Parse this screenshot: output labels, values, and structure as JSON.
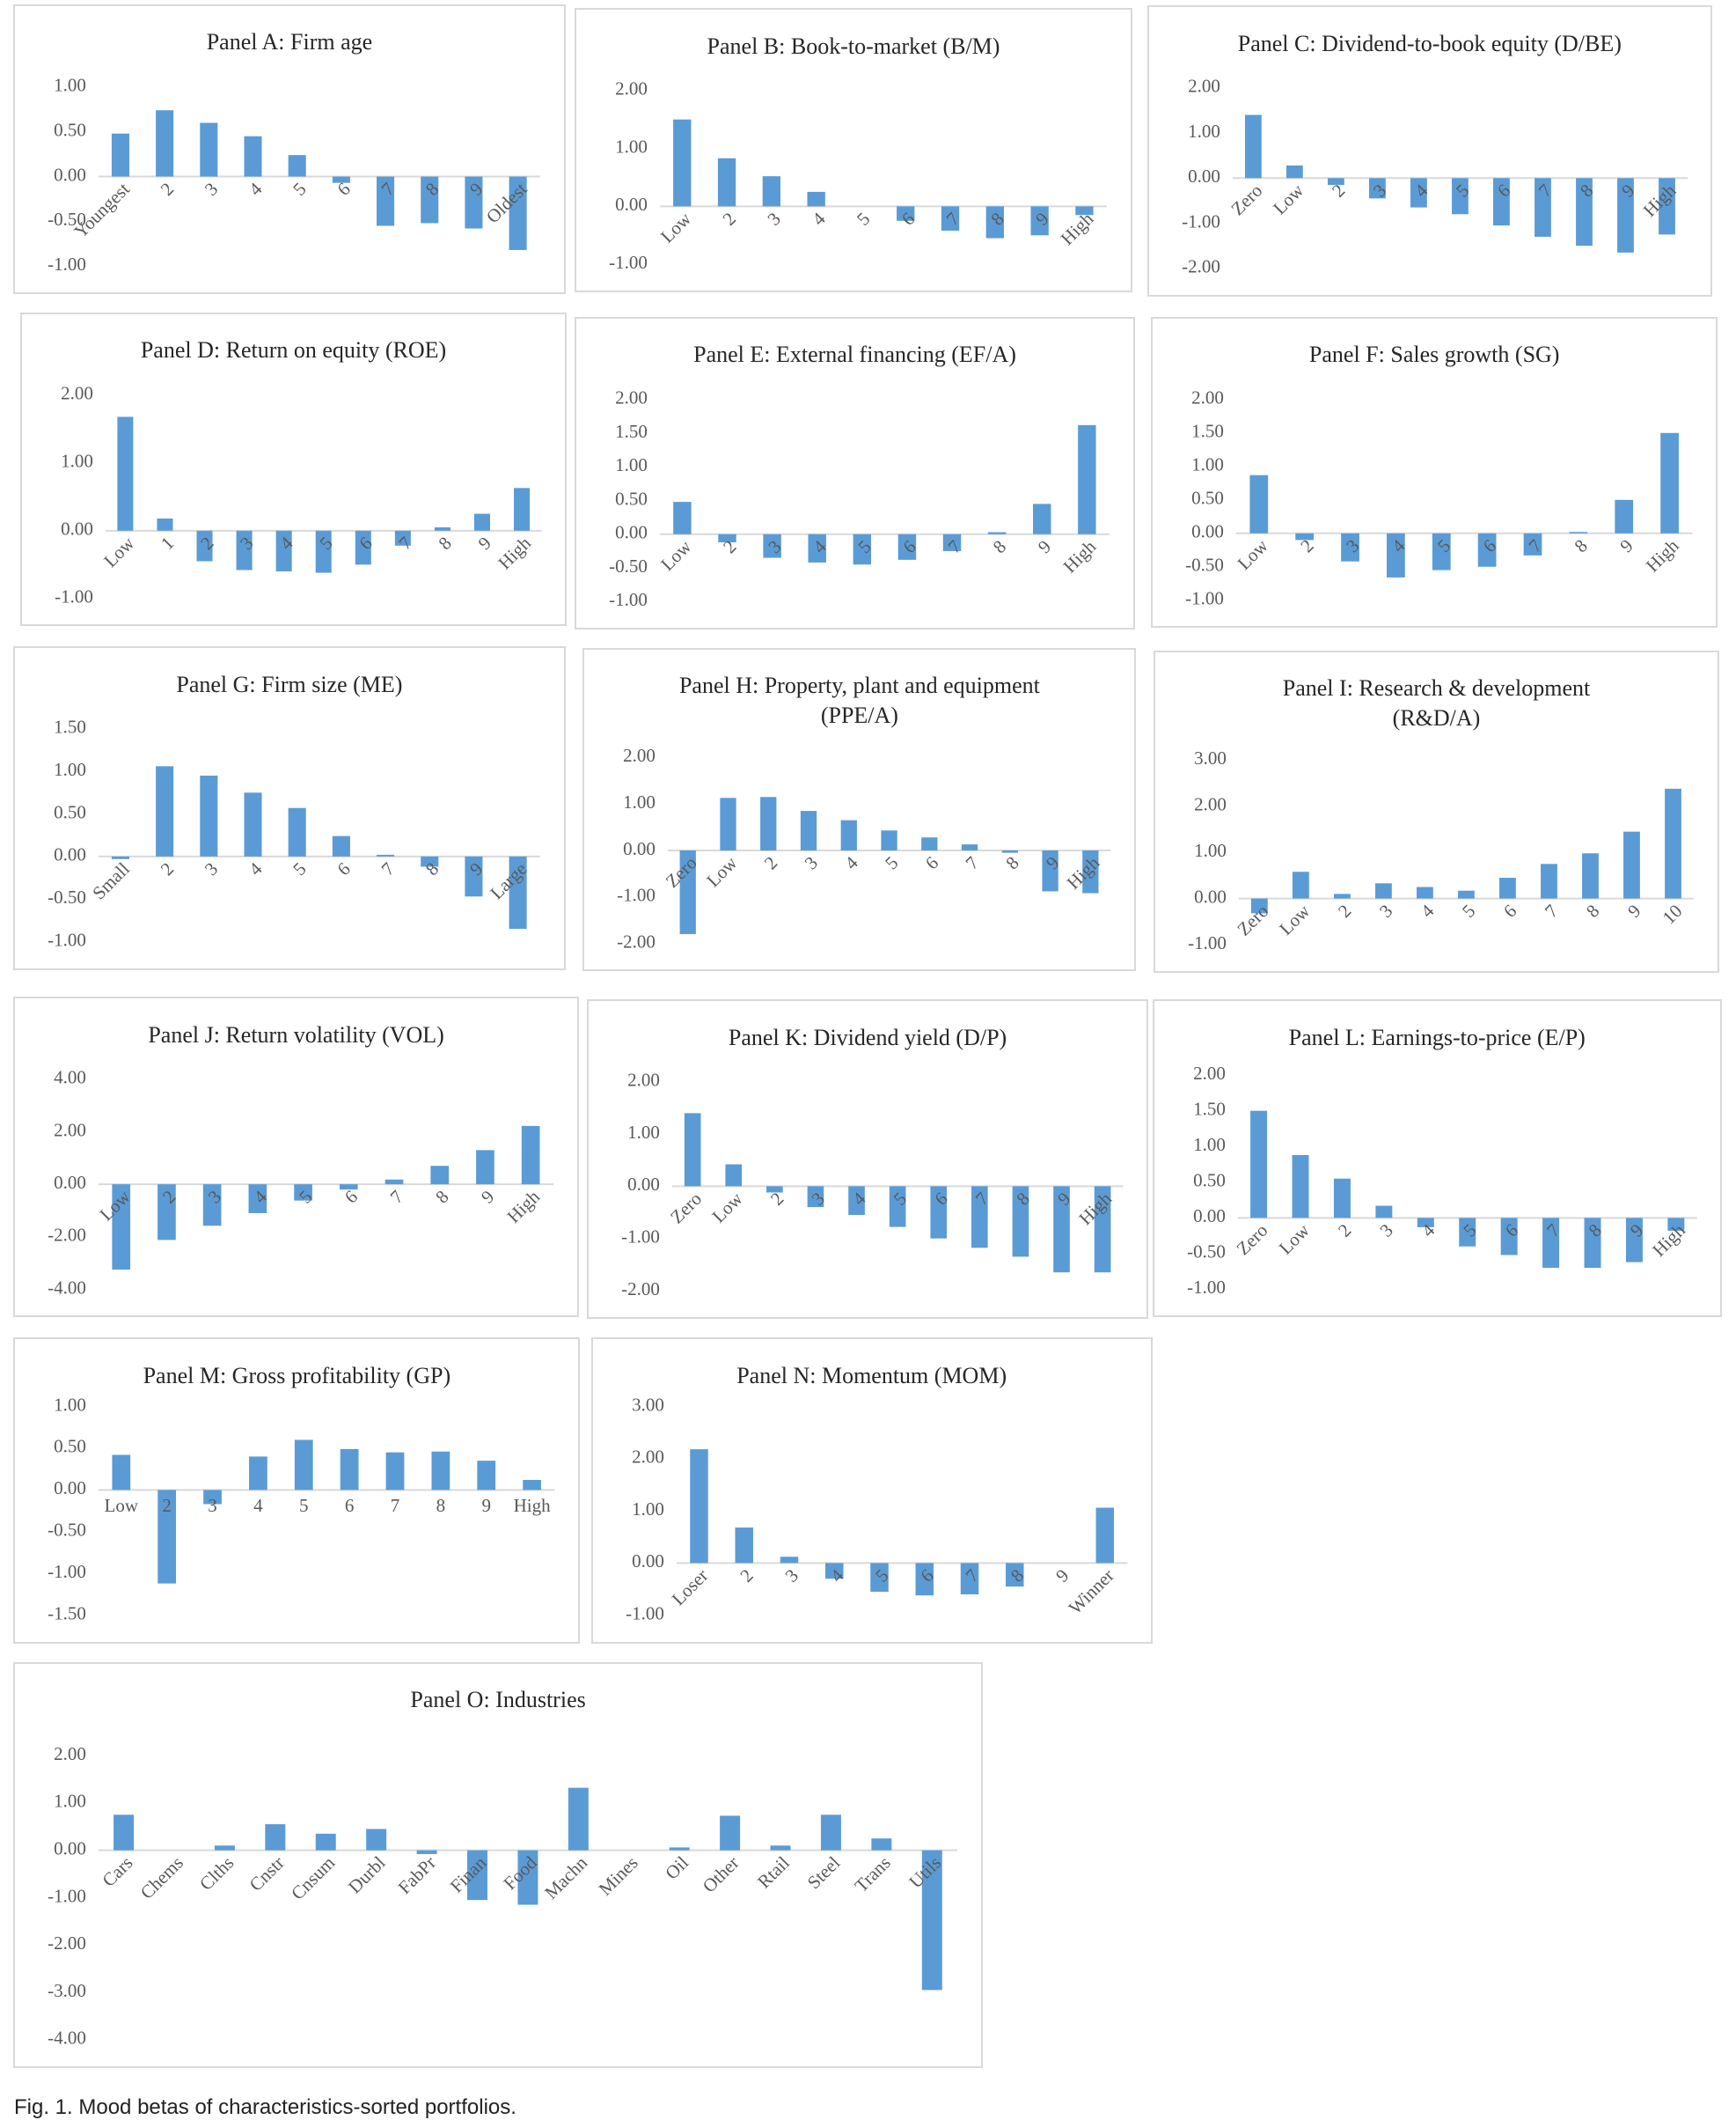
{
  "caption": "Fig. 1. Mood betas of characteristics-sorted portfolios.",
  "chart_data": [
    {
      "type": "bar",
      "title": "Panel A: Firm age",
      "color": "#5b9bd5",
      "categories": [
        "Youngest",
        "2",
        "3",
        "4",
        "5",
        "6",
        "7",
        "8",
        "9",
        "Oldest"
      ],
      "values": [
        0.48,
        0.74,
        0.6,
        0.45,
        0.24,
        -0.07,
        -0.55,
        -0.52,
        -0.58,
        -0.82
      ],
      "ylim": [
        -1,
        1
      ],
      "yticks": [
        {
          "value": -1,
          "label": "-1.00"
        },
        {
          "value": -0.5,
          "label": "-0.50"
        },
        {
          "value": 0,
          "label": "0.00"
        },
        {
          "value": 0.5,
          "label": "0.50"
        },
        {
          "value": 1,
          "label": "1.00"
        }
      ]
    },
    {
      "type": "bar",
      "title": "Panel B: Book-to-market (B/M)",
      "color": "#5b9bd5",
      "categories": [
        "Low",
        "2",
        "3",
        "4",
        "5",
        "6",
        "7",
        "8",
        "9",
        "High"
      ],
      "values": [
        1.5,
        0.83,
        0.52,
        0.25,
        0,
        -0.25,
        -0.42,
        -0.55,
        -0.5,
        -0.15
      ],
      "ylim": [
        -1,
        2
      ],
      "yticks": [
        {
          "value": -1,
          "label": "-1.00"
        },
        {
          "value": 0,
          "label": "0.00"
        },
        {
          "value": 1,
          "label": "1.00"
        },
        {
          "value": 2,
          "label": "2.00"
        }
      ]
    },
    {
      "type": "bar",
      "title": "Panel C: Dividend-to-book equity (D/BE)",
      "color": "#5b9bd5",
      "categories": [
        "Zero",
        "Low",
        "2",
        "3",
        "4",
        "5",
        "6",
        "7",
        "8",
        "9",
        "High"
      ],
      "values": [
        1.4,
        0.28,
        -0.15,
        -0.45,
        -0.65,
        -0.8,
        -1.05,
        -1.3,
        -1.5,
        -1.65,
        -1.25
      ],
      "ylim": [
        -2,
        2
      ],
      "yticks": [
        {
          "value": -2,
          "label": "-2.00"
        },
        {
          "value": -1,
          "label": "-1.00"
        },
        {
          "value": 0,
          "label": "0.00"
        },
        {
          "value": 1,
          "label": "1.00"
        },
        {
          "value": 2,
          "label": "2.00"
        }
      ]
    },
    {
      "type": "bar",
      "title": "Panel D: Return on equity (ROE)",
      "color": "#5b9bd5",
      "categories": [
        "Low",
        "1",
        "2",
        "3",
        "4",
        "5",
        "6",
        "7",
        "8",
        "9",
        "High"
      ],
      "values": [
        1.68,
        0.18,
        -0.45,
        -0.58,
        -0.6,
        -0.62,
        -0.5,
        -0.22,
        0.05,
        0.25,
        0.63
      ],
      "ylim": [
        -1,
        2
      ],
      "yticks": [
        {
          "value": -1,
          "label": "-1.00"
        },
        {
          "value": 0,
          "label": "0.00"
        },
        {
          "value": 1,
          "label": "1.00"
        },
        {
          "value": 2,
          "label": "2.00"
        }
      ]
    },
    {
      "type": "bar",
      "title": "Panel E: External financing (EF/A)",
      "color": "#5b9bd5",
      "categories": [
        "Low",
        "2",
        "3",
        "4",
        "5",
        "6",
        "7",
        "8",
        "9",
        "High"
      ],
      "values": [
        0.48,
        -0.12,
        -0.35,
        -0.42,
        -0.45,
        -0.38,
        -0.25,
        0.03,
        0.45,
        1.62
      ],
      "ylim": [
        -1,
        2
      ],
      "yticks": [
        {
          "value": -1,
          "label": "-1.00"
        },
        {
          "value": -0.5,
          "label": "-0.50"
        },
        {
          "value": 0,
          "label": "0.00"
        },
        {
          "value": 0.5,
          "label": "0.50"
        },
        {
          "value": 1,
          "label": "1.00"
        },
        {
          "value": 1.5,
          "label": "1.50"
        },
        {
          "value": 2,
          "label": "2.00"
        }
      ]
    },
    {
      "type": "bar",
      "title": "Panel F: Sales growth (SG)",
      "color": "#5b9bd5",
      "categories": [
        "Low",
        "2",
        "3",
        "4",
        "5",
        "6",
        "7",
        "8",
        "9",
        "High"
      ],
      "values": [
        0.87,
        -0.1,
        -0.42,
        -0.66,
        -0.55,
        -0.5,
        -0.33,
        0.02,
        0.5,
        1.5
      ],
      "ylim": [
        -1,
        2
      ],
      "yticks": [
        {
          "value": -1,
          "label": "-1.00"
        },
        {
          "value": -0.5,
          "label": "-0.50"
        },
        {
          "value": 0,
          "label": "0.00"
        },
        {
          "value": 0.5,
          "label": "0.50"
        },
        {
          "value": 1,
          "label": "1.00"
        },
        {
          "value": 1.5,
          "label": "1.50"
        },
        {
          "value": 2,
          "label": "2.00"
        }
      ]
    },
    {
      "type": "bar",
      "title": "Panel G: Firm size (ME)",
      "color": "#5b9bd5",
      "categories": [
        "Small",
        "2",
        "3",
        "4",
        "5",
        "6",
        "7",
        "8",
        "9",
        "Large"
      ],
      "values": [
        -0.03,
        1.06,
        0.95,
        0.75,
        0.57,
        0.24,
        0.02,
        -0.12,
        -0.47,
        -0.85
      ],
      "ylim": [
        -1,
        1.5
      ],
      "yticks": [
        {
          "value": -1,
          "label": "-1.00"
        },
        {
          "value": -0.5,
          "label": "-0.50"
        },
        {
          "value": 0,
          "label": "0.00"
        },
        {
          "value": 0.5,
          "label": "0.50"
        },
        {
          "value": 1,
          "label": "1.00"
        },
        {
          "value": 1.5,
          "label": "1.50"
        }
      ]
    },
    {
      "type": "bar",
      "title": "Panel H: Property, plant and equipment (PPE/A)",
      "color": "#5b9bd5",
      "categories": [
        "Zero",
        "Low",
        "2",
        "3",
        "4",
        "5",
        "6",
        "7",
        "8",
        "9",
        "High"
      ],
      "values": [
        -1.8,
        1.13,
        1.15,
        0.85,
        0.65,
        0.43,
        0.28,
        0.13,
        -0.05,
        -0.88,
        -0.92
      ],
      "ylim": [
        -2,
        2
      ],
      "yticks": [
        {
          "value": -2,
          "label": "-2.00"
        },
        {
          "value": -1,
          "label": "-1.00"
        },
        {
          "value": 0,
          "label": "0.00"
        },
        {
          "value": 1,
          "label": "1.00"
        },
        {
          "value": 2,
          "label": "2.00"
        }
      ]
    },
    {
      "type": "bar",
      "title": "Panel I: Research & development (R&D/A)",
      "color": "#5b9bd5",
      "categories": [
        "Zero",
        "Low",
        "2",
        "3",
        "4",
        "5",
        "6",
        "7",
        "8",
        "9",
        "10"
      ],
      "values": [
        -0.32,
        0.58,
        0.1,
        0.33,
        0.25,
        0.17,
        0.45,
        0.75,
        0.98,
        1.45,
        2.38
      ],
      "ylim": [
        -1,
        3
      ],
      "yticks": [
        {
          "value": -1,
          "label": "-1.00"
        },
        {
          "value": 0,
          "label": "0.00"
        },
        {
          "value": 1,
          "label": "1.00"
        },
        {
          "value": 2,
          "label": "2.00"
        },
        {
          "value": 3,
          "label": "3.00"
        }
      ]
    },
    {
      "type": "bar",
      "title": "Panel J: Return volatility (VOL)",
      "color": "#5b9bd5",
      "categories": [
        "Low",
        "2",
        "3",
        "4",
        "5",
        "6",
        "7",
        "8",
        "9",
        "High"
      ],
      "values": [
        -3.25,
        -2.12,
        -1.58,
        -1.1,
        -0.62,
        -0.2,
        0.18,
        0.7,
        1.3,
        2.22
      ],
      "ylim": [
        -4,
        4
      ],
      "yticks": [
        {
          "value": -4,
          "label": "-4.00"
        },
        {
          "value": -2,
          "label": "-2.00"
        },
        {
          "value": 0,
          "label": "0.00"
        },
        {
          "value": 2,
          "label": "2.00"
        },
        {
          "value": 4,
          "label": "4.00"
        }
      ]
    },
    {
      "type": "bar",
      "title": "Panel K: Dividend yield (D/P)",
      "color": "#5b9bd5",
      "categories": [
        "Zero",
        "Low",
        "2",
        "3",
        "4",
        "5",
        "6",
        "7",
        "8",
        "9",
        "High"
      ],
      "values": [
        1.4,
        0.42,
        -0.12,
        -0.4,
        -0.55,
        -0.78,
        -1.0,
        -1.18,
        -1.35,
        -1.65,
        -1.65
      ],
      "ylim": [
        -2,
        2
      ],
      "yticks": [
        {
          "value": -2,
          "label": "-2.00"
        },
        {
          "value": -1,
          "label": "-1.00"
        },
        {
          "value": 0,
          "label": "0.00"
        },
        {
          "value": 1,
          "label": "1.00"
        },
        {
          "value": 2,
          "label": "2.00"
        }
      ]
    },
    {
      "type": "bar",
      "title": "Panel L: Earnings-to-price (E/P)",
      "color": "#5b9bd5",
      "categories": [
        "Zero",
        "Low",
        "2",
        "3",
        "4",
        "5",
        "6",
        "7",
        "8",
        "9",
        "High"
      ],
      "values": [
        1.5,
        0.88,
        0.55,
        0.17,
        -0.13,
        -0.4,
        -0.52,
        -0.7,
        -0.7,
        -0.62,
        -0.18
      ],
      "ylim": [
        -1,
        2
      ],
      "yticks": [
        {
          "value": -1,
          "label": "-1.00"
        },
        {
          "value": -0.5,
          "label": "-0.50"
        },
        {
          "value": 0,
          "label": "0.00"
        },
        {
          "value": 0.5,
          "label": "0.50"
        },
        {
          "value": 1,
          "label": "1.00"
        },
        {
          "value": 1.5,
          "label": "1.50"
        },
        {
          "value": 2,
          "label": "2.00"
        }
      ]
    },
    {
      "type": "bar",
      "title": "Panel M: Gross profitability (GP)",
      "color": "#5b9bd5",
      "categories": [
        "Low",
        "2",
        "3",
        "4",
        "5",
        "6",
        "7",
        "8",
        "9",
        "High"
      ],
      "values": [
        0.42,
        -1.12,
        -0.17,
        0.4,
        0.6,
        0.49,
        0.45,
        0.46,
        0.35,
        0.12
      ],
      "ylim": [
        -1.5,
        1
      ],
      "yticks": [
        {
          "value": -1.5,
          "label": "-1.50"
        },
        {
          "value": -1,
          "label": "-1.00"
        },
        {
          "value": -0.5,
          "label": "-0.50"
        },
        {
          "value": 0,
          "label": "0.00"
        },
        {
          "value": 0.5,
          "label": "0.50"
        },
        {
          "value": 1,
          "label": "1.00"
        }
      ]
    },
    {
      "type": "bar",
      "title": "Panel N: Momentum (MOM)",
      "color": "#5b9bd5",
      "categories": [
        "Loser",
        "2",
        "3",
        "4",
        "5",
        "6",
        "7",
        "8",
        "9",
        "Winner"
      ],
      "values": [
        2.18,
        0.68,
        0.12,
        -0.3,
        -0.55,
        -0.62,
        -0.6,
        -0.45,
        0,
        1.06
      ],
      "ylim": [
        -1,
        3
      ],
      "yticks": [
        {
          "value": -1,
          "label": "-1.00"
        },
        {
          "value": 0,
          "label": "0.00"
        },
        {
          "value": 1,
          "label": "1.00"
        },
        {
          "value": 2,
          "label": "2.00"
        },
        {
          "value": 3,
          "label": "3.00"
        }
      ]
    },
    {
      "type": "bar",
      "title": "Panel O: Industries",
      "color": "#5b9bd5",
      "categories": [
        "Cars",
        "Chems",
        "Clths",
        "Cnstr",
        "Cnsum",
        "Durbl",
        "FabPr",
        "Finan",
        "Food",
        "Machn",
        "Mines",
        "Oil",
        "Other",
        "Rtail",
        "Steel",
        "Trans",
        "Utils"
      ],
      "values": [
        0.75,
        0,
        0.1,
        0.55,
        0.35,
        0.45,
        -0.08,
        -1.05,
        -1.15,
        1.32,
        0,
        0.06,
        0.73,
        0.1,
        0.75,
        0.25,
        -2.95
      ],
      "ylim": [
        -4,
        2
      ],
      "yticks": [
        {
          "value": -4,
          "label": "-4.00"
        },
        {
          "value": -3,
          "label": "-3.00"
        },
        {
          "value": -2,
          "label": "-2.00"
        },
        {
          "value": -1,
          "label": "-1.00"
        },
        {
          "value": 0,
          "label": "0.00"
        },
        {
          "value": 1,
          "label": "1.00"
        },
        {
          "value": 2,
          "label": "2.00"
        }
      ]
    }
  ]
}
